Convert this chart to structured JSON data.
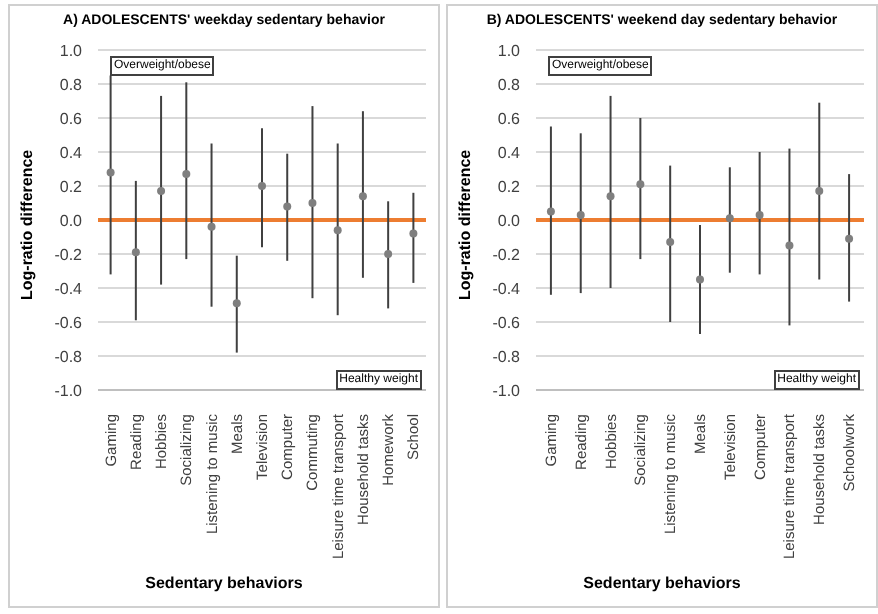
{
  "chart_data": [
    {
      "type": "scatter",
      "title": "A) ADOLESCENTS' weekday sedentary behavior",
      "xlabel": "Sedentary behaviors",
      "ylabel": "Log-ratio difference",
      "categories": [
        "Gaming",
        "Reading",
        "Hobbies",
        "Socializing",
        "Listening to music",
        "Meals",
        "Television",
        "Computer",
        "Commuting",
        "Leisure time transport",
        "Household tasks",
        "Homework",
        "School"
      ],
      "values": [
        0.28,
        -0.19,
        0.17,
        0.27,
        -0.04,
        -0.49,
        0.2,
        0.08,
        0.1,
        -0.06,
        0.14,
        -0.2,
        -0.08
      ],
      "errors": [
        [
          -0.32,
          0.85
        ],
        [
          -0.59,
          0.23
        ],
        [
          -0.38,
          0.73
        ],
        [
          -0.23,
          0.81
        ],
        [
          -0.51,
          0.45
        ],
        [
          -0.78,
          -0.21
        ],
        [
          -0.16,
          0.54
        ],
        [
          -0.24,
          0.39
        ],
        [
          -0.46,
          0.67
        ],
        [
          -0.56,
          0.45
        ],
        [
          -0.34,
          0.64
        ],
        [
          -0.52,
          0.11
        ],
        [
          -0.37,
          0.16
        ]
      ],
      "color": "#7f7f7f",
      "marker": "circle",
      "ylim": [
        -1,
        1
      ],
      "yticks": [
        {
          "value": -1,
          "label": "-1.0"
        },
        -0.8,
        -0.6,
        -0.4,
        -0.2,
        {
          "value": 0,
          "label": "0.0"
        },
        0.2,
        0.4,
        0.6,
        0.8,
        {
          "value": 1,
          "label": "1.0"
        }
      ],
      "grid": "y",
      "ref_lines": [
        {
          "axis": "y",
          "value": 0,
          "color": "#ed7d31"
        }
      ],
      "annotations": [
        "Overweight/obese",
        "Healthy weight"
      ]
    },
    {
      "type": "scatter",
      "title": "B) ADOLESCENTS' weekend day sedentary behavior",
      "xlabel": "Sedentary behaviors",
      "ylabel": "Log-ratio difference",
      "categories": [
        "Gaming",
        "Reading",
        "Hobbies",
        "Socializing",
        "Listening to music",
        "Meals",
        "Television",
        "Computer",
        "Leisure time transport",
        "Household tasks",
        "Schoolwork"
      ],
      "values": [
        0.05,
        0.03,
        0.14,
        0.21,
        -0.13,
        -0.35,
        0.01,
        0.03,
        -0.15,
        0.17,
        -0.11
      ],
      "errors": [
        [
          -0.44,
          0.55
        ],
        [
          -0.43,
          0.51
        ],
        [
          -0.4,
          0.73
        ],
        [
          -0.23,
          0.6
        ],
        [
          -0.6,
          0.32
        ],
        [
          -0.67,
          -0.03
        ],
        [
          -0.31,
          0.31
        ],
        [
          -0.32,
          0.4
        ],
        [
          -0.62,
          0.42
        ],
        [
          -0.35,
          0.69
        ],
        [
          -0.48,
          0.27
        ]
      ],
      "color": "#7f7f7f",
      "marker": "circle",
      "ylim": [
        -1,
        1
      ],
      "yticks": [
        {
          "value": -1,
          "label": "-1.0"
        },
        -0.8,
        -0.6,
        -0.4,
        -0.2,
        {
          "value": 0,
          "label": "0.0"
        },
        0.2,
        0.4,
        0.6,
        0.8,
        {
          "value": 1,
          "label": "1.0"
        }
      ],
      "grid": "y",
      "ref_lines": [
        {
          "axis": "y",
          "value": 0,
          "color": "#ed7d31"
        }
      ],
      "annotations": [
        "Overweight/obese",
        "Healthy weight"
      ]
    }
  ]
}
